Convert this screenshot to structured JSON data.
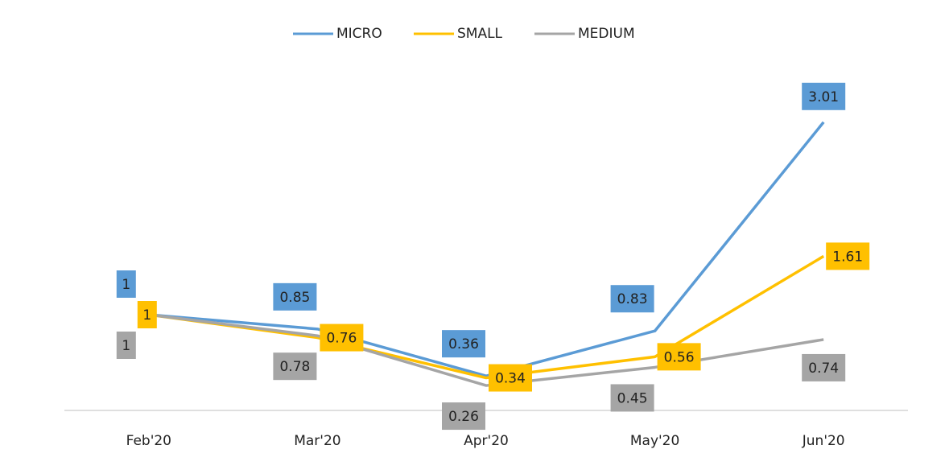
{
  "chart_data": {
    "type": "line",
    "categories": [
      "Feb'20",
      "Mar'20",
      "Apr'20",
      "May'20",
      "Jun'20"
    ],
    "series": [
      {
        "name": "MICRO",
        "color": "#5b9bd5",
        "values": [
          1,
          0.85,
          0.36,
          0.83,
          3.01
        ]
      },
      {
        "name": "SMALL",
        "color": "#ffc000",
        "values": [
          1,
          0.76,
          0.34,
          0.56,
          1.61
        ]
      },
      {
        "name": "MEDIUM",
        "color": "#a5a5a5",
        "values": [
          1,
          0.78,
          0.26,
          0.45,
          0.74
        ]
      }
    ],
    "ylim": [
      0,
      3.5
    ],
    "legend": "top",
    "grid": false
  }
}
